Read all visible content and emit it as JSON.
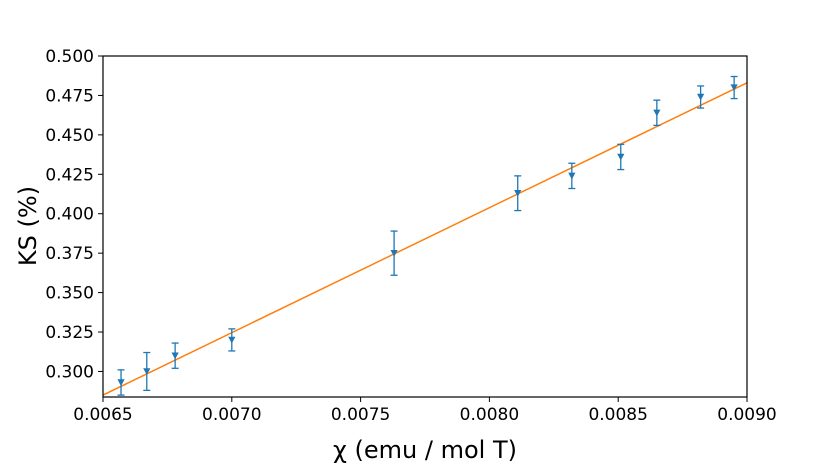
{
  "chart_data": {
    "type": "scatter",
    "xlabel": "χ (emu / mol T)",
    "ylabel": "KS (%)",
    "xlim": [
      0.0065,
      0.009
    ],
    "ylim": [
      0.2838,
      0.5
    ],
    "x_ticks": [
      "0.0065",
      "0.0070",
      "0.0075",
      "0.0080",
      "0.0085",
      "0.0090"
    ],
    "y_ticks": [
      "0.300",
      "0.325",
      "0.350",
      "0.375",
      "0.400",
      "0.425",
      "0.450",
      "0.475",
      "0.500"
    ],
    "grid": false,
    "series": [
      {
        "kind": "errorbar",
        "marker": "triangle-down",
        "color": "#1f77b4",
        "x": [
          0.00657,
          0.00667,
          0.00678,
          0.007,
          0.00763,
          0.00811,
          0.00832,
          0.00851,
          0.00865,
          0.00882,
          0.00895
        ],
        "y": [
          0.293,
          0.3,
          0.31,
          0.32,
          0.375,
          0.413,
          0.424,
          0.436,
          0.464,
          0.474,
          0.48
        ],
        "yerr": [
          0.008,
          0.012,
          0.008,
          0.007,
          0.014,
          0.011,
          0.008,
          0.008,
          0.008,
          0.007,
          0.007
        ]
      },
      {
        "kind": "fit-line",
        "color": "#ff7f0e",
        "x": [
          0.0065,
          0.009
        ],
        "y": [
          0.285,
          0.483
        ]
      }
    ]
  }
}
